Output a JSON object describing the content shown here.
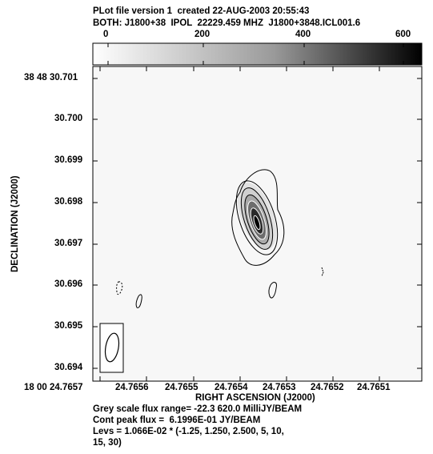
{
  "header": {
    "line1": "PLot file version 1  created 22-AUG-2003 20:55:43",
    "line2": "BOTH: J1800+38  IPOL  22229.459 MHZ  J1800+3848.ICL001.6"
  },
  "colorbar": {
    "ticks": [
      "0",
      "200",
      "400",
      "600"
    ],
    "tick_values": [
      0,
      200,
      400,
      600
    ],
    "range": [
      -22.3,
      620.0
    ]
  },
  "axes": {
    "ylabel": "DECLINATION (J2000)",
    "xlabel": "RIGHT ASCENSION (J2000)",
    "yticks": [
      "38 48 30.701",
      "30.700",
      "30.699",
      "30.698",
      "30.697",
      "30.696",
      "30.695",
      "30.694"
    ],
    "xticks": [
      "18 00 24.7657",
      "24.7656",
      "24.7655",
      "24.7654",
      "24.7653",
      "24.7652",
      "24.7651"
    ]
  },
  "footer": {
    "line1": "Grey scale flux range= -22.3 620.0 MilliJY/BEAM",
    "line2": "Cont peak flux =  6.1996E-01 JY/BEAM",
    "line3": "Levs = 1.066E-02 * (-1.25, 1.250, 2.500, 5, 10,",
    "line4": "15, 30)"
  }
}
